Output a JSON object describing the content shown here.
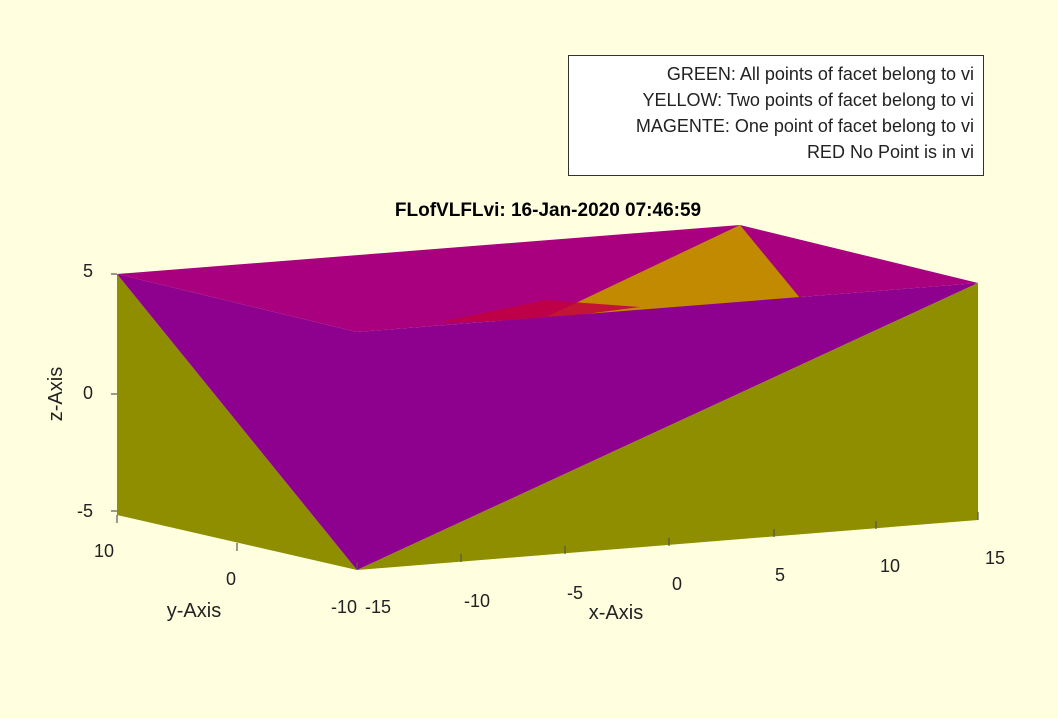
{
  "figure": {
    "background": "#FFFFE0",
    "title": "FLofVLFLvi: 16-Jan-2020 07:46:59"
  },
  "legend": {
    "lines": [
      "GREEN: All points of facet belong to vi",
      "YELLOW: Two points of facet belong to vi",
      "MAGENTE: One point of facet belong to vi",
      "RED No Point is in vi"
    ]
  },
  "axes": {
    "x_label": "x-Axis",
    "y_label": "y-Axis",
    "z_label": "z-Axis",
    "x_ticks": [
      "-15",
      "-10",
      "-5",
      "0",
      "5",
      "10",
      "15"
    ],
    "y_ticks": [
      "10",
      "0",
      "-10"
    ],
    "z_ticks": [
      "5",
      "0",
      "-5"
    ]
  },
  "colors": {
    "olive": "#8E8E00",
    "purple": "#8E008E",
    "magenta_top": "#A8007E",
    "orange": "#C28A00",
    "red": "#C20040"
  }
}
